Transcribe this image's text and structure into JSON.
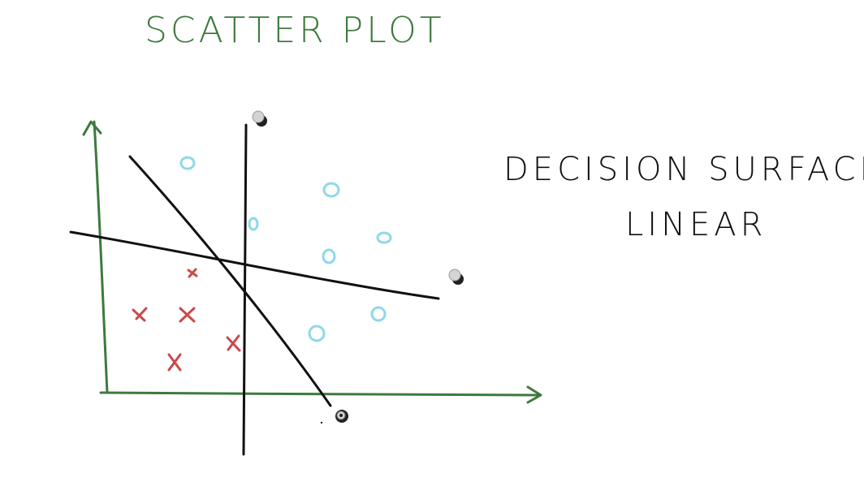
{
  "page": {
    "title": "SCATTER PLOT",
    "annotation_line1": "DECISION SURFACE",
    "annotation_line2": "LINEAR"
  },
  "colors": {
    "axes": "#3d7a3d",
    "title": "#3d7a3d",
    "ink": "#111111",
    "x_marks": "#c94a4a",
    "o_marks": "#8fd8e8",
    "handle_fill": "#d4d4d4",
    "handle_ring": "#222222"
  },
  "marks": {
    "x_class": "x",
    "o_class": "o"
  },
  "icons": {
    "handle": "drag-handle-icon"
  }
}
